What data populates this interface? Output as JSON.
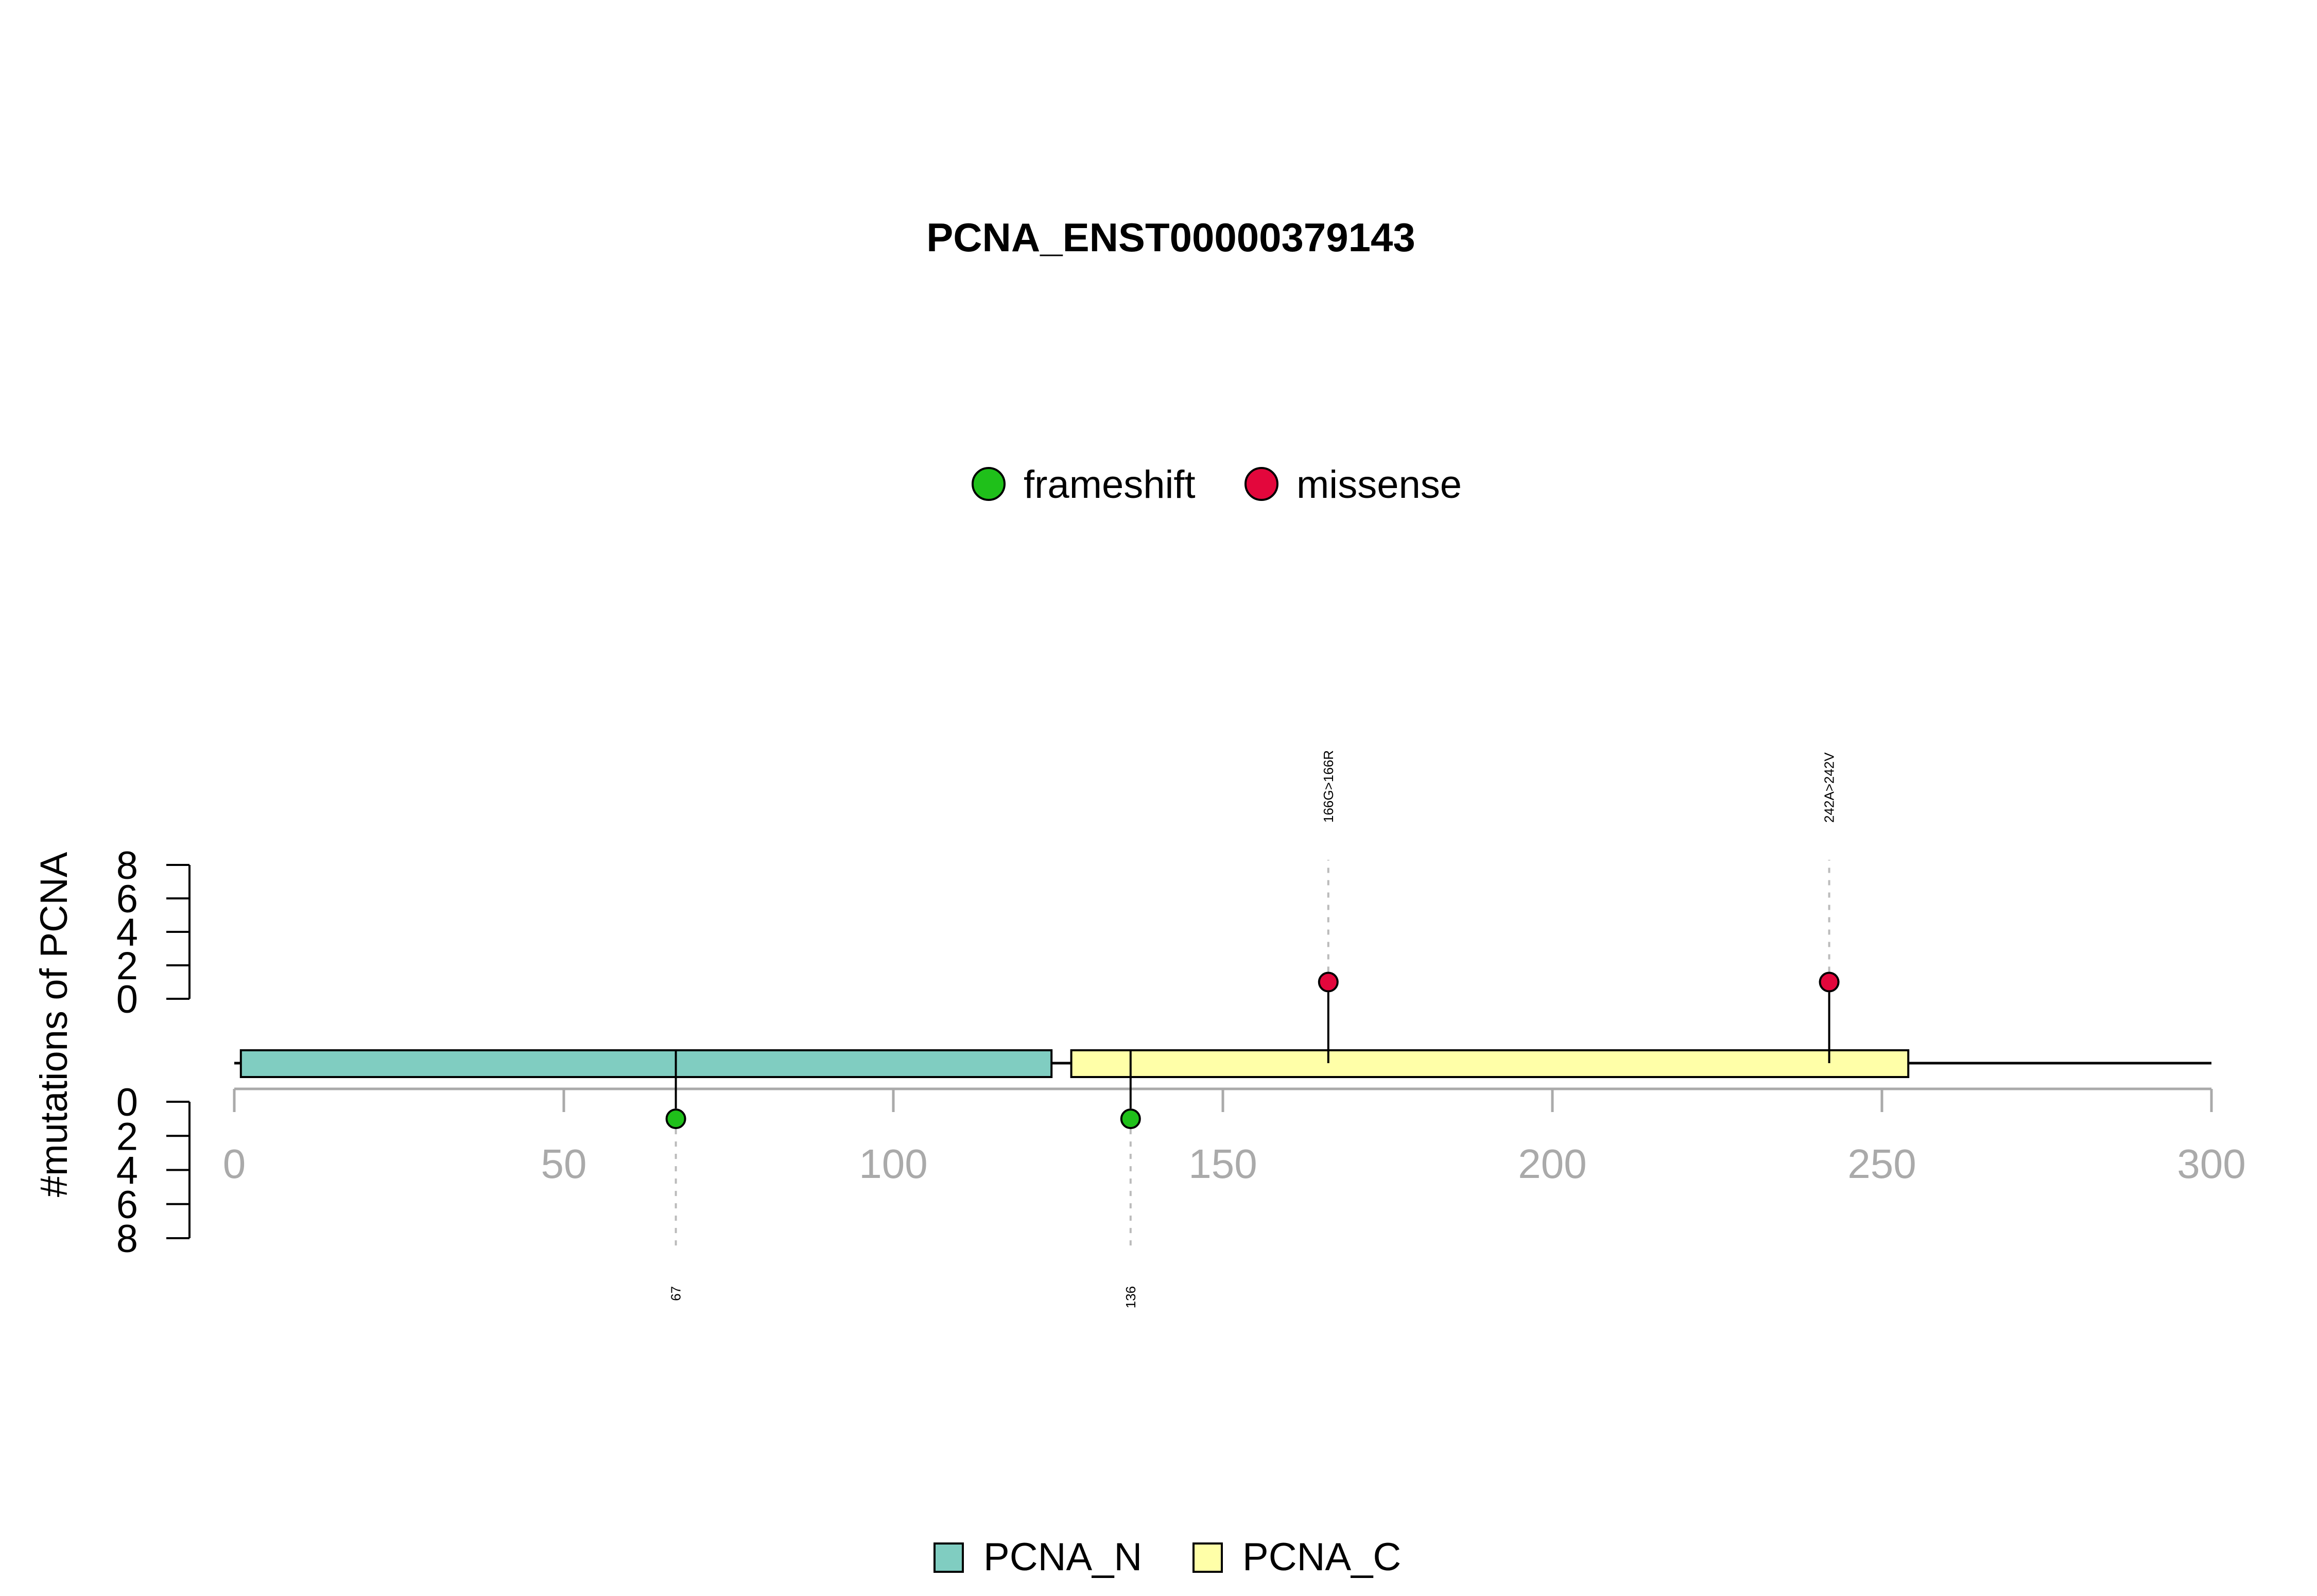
{
  "chart_data": {
    "type": "lollipop",
    "title": "PCNA_ENST00000379143",
    "ylabel": "#mutations of PCNA",
    "xlim": [
      0,
      300
    ],
    "x_ticks": [
      0,
      50,
      100,
      150,
      200,
      250,
      300
    ],
    "y_ticks": [
      0,
      2,
      4,
      6,
      8
    ],
    "y_range": [
      0,
      8
    ],
    "protein_length": 300,
    "mutation_legend": [
      {
        "label": "frameshift",
        "color": "#1fc01a"
      },
      {
        "label": "missense",
        "color": "#e3073c"
      }
    ],
    "domain_legend": [
      {
        "label": "PCNA_N",
        "color": "#80cdc1"
      },
      {
        "label": "PCNA_C",
        "color": "#ffffa8"
      }
    ],
    "domains": [
      {
        "name": "PCNA_N",
        "start": 1,
        "end": 124,
        "color": "#80cdc1"
      },
      {
        "name": "PCNA_C",
        "start": 127,
        "end": 254,
        "color": "#ffffa8"
      }
    ],
    "mutations": [
      {
        "position": 166,
        "type": "missense",
        "count": 1,
        "side": "top",
        "label": "166G>166R"
      },
      {
        "position": 242,
        "type": "missense",
        "count": 1,
        "side": "top",
        "label": "242A>242V"
      },
      {
        "position": 67,
        "type": "frameshift",
        "count": 1,
        "side": "bottom",
        "label": "67"
      },
      {
        "position": 136,
        "type": "frameshift",
        "count": 1,
        "side": "bottom",
        "label": "136"
      }
    ]
  }
}
